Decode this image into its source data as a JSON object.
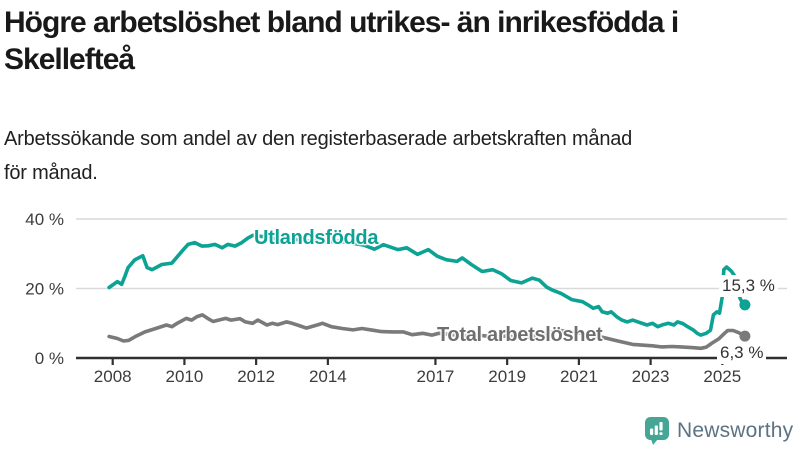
{
  "header": {
    "title_lines": [
      "Högre arbetslöshet bland utrikes- än inrikesfödda i",
      "Skellefteå"
    ],
    "subtitle_lines": [
      "Arbetssökande som andel av den registerbaserade arbetskraften månad",
      "för månad."
    ]
  },
  "chart_data": {
    "type": "line",
    "title": "Högre arbetslöshet bland utrikes- än inrikesfödda i Skellefteå",
    "subtitle": "Arbetssökande som andel av den registerbaserade arbetskraften månad för månad.",
    "xlabel": "",
    "ylabel": "",
    "xlim": [
      2007.3,
      2026.4
    ],
    "ylim": [
      0,
      43
    ],
    "grid": "horizontal",
    "legend_position": "inline-labels",
    "x_ticks": [
      2008,
      2010,
      2012,
      2014,
      2017,
      2019,
      2021,
      2023,
      2025
    ],
    "x_tick_labels": [
      "2008",
      "2010",
      "2012",
      "2014",
      "2017",
      "2019",
      "2021",
      "2023",
      "2025"
    ],
    "y_ticks": [
      0,
      20,
      40
    ],
    "y_tick_labels": [
      "0 %",
      "20 %",
      "40 %"
    ],
    "colors": {
      "grid": "#d9d9d9",
      "axis": "#303030",
      "tick_text": "#3c3c3c"
    },
    "series": [
      {
        "name": "Utlandsfödda",
        "color": "#0ca294",
        "end_label": "15,3 %",
        "end_value": 15.3,
        "points": [
          [
            2007.9,
            20.3
          ],
          [
            2008.13,
            22.0
          ],
          [
            2008.25,
            21.2
          ],
          [
            2008.34,
            23.5
          ],
          [
            2008.43,
            26.0
          ],
          [
            2008.62,
            28.3
          ],
          [
            2008.84,
            29.4
          ],
          [
            2008.96,
            26.0
          ],
          [
            2009.1,
            25.4
          ],
          [
            2009.37,
            26.9
          ],
          [
            2009.65,
            27.3
          ],
          [
            2009.93,
            30.7
          ],
          [
            2010.1,
            32.7
          ],
          [
            2010.29,
            33.2
          ],
          [
            2010.49,
            32.2
          ],
          [
            2010.66,
            32.3
          ],
          [
            2010.85,
            32.7
          ],
          [
            2011.05,
            31.7
          ],
          [
            2011.21,
            32.7
          ],
          [
            2011.41,
            32.2
          ],
          [
            2011.6,
            33.2
          ],
          [
            2011.77,
            34.5
          ],
          [
            2011.91,
            35.3
          ],
          [
            2012.2,
            34.9
          ],
          [
            2012.5,
            34.3
          ],
          [
            2012.8,
            33.9
          ],
          [
            2013.1,
            34.1
          ],
          [
            2013.4,
            33.6
          ],
          [
            2013.7,
            33.9
          ],
          [
            2014.0,
            33.4
          ],
          [
            2014.3,
            33.6
          ],
          [
            2014.7,
            33.0
          ],
          [
            2015.0,
            32.5
          ],
          [
            2015.3,
            31.3
          ],
          [
            2015.55,
            32.6
          ],
          [
            2015.95,
            31.2
          ],
          [
            2016.2,
            31.7
          ],
          [
            2016.5,
            29.8
          ],
          [
            2016.8,
            31.2
          ],
          [
            2017.05,
            29.3
          ],
          [
            2017.3,
            28.3
          ],
          [
            2017.6,
            27.8
          ],
          [
            2017.75,
            28.8
          ],
          [
            2018.0,
            26.9
          ],
          [
            2018.3,
            24.9
          ],
          [
            2018.6,
            25.4
          ],
          [
            2018.85,
            24.2
          ],
          [
            2019.1,
            22.3
          ],
          [
            2019.4,
            21.6
          ],
          [
            2019.7,
            23.0
          ],
          [
            2019.9,
            22.4
          ],
          [
            2020.1,
            20.4
          ],
          [
            2020.25,
            19.6
          ],
          [
            2020.5,
            18.6
          ],
          [
            2020.8,
            16.8
          ],
          [
            2021.1,
            16.2
          ],
          [
            2021.25,
            15.3
          ],
          [
            2021.4,
            14.3
          ],
          [
            2021.55,
            14.8
          ],
          [
            2021.65,
            13.3
          ],
          [
            2021.8,
            12.9
          ],
          [
            2021.9,
            13.3
          ],
          [
            2022.05,
            11.9
          ],
          [
            2022.2,
            10.9
          ],
          [
            2022.35,
            10.4
          ],
          [
            2022.5,
            10.9
          ],
          [
            2022.65,
            10.4
          ],
          [
            2022.9,
            9.5
          ],
          [
            2023.05,
            10.0
          ],
          [
            2023.2,
            9.0
          ],
          [
            2023.35,
            9.6
          ],
          [
            2023.5,
            10.0
          ],
          [
            2023.65,
            9.5
          ],
          [
            2023.75,
            10.4
          ],
          [
            2023.9,
            9.9
          ],
          [
            2024.05,
            8.9
          ],
          [
            2024.2,
            8.0
          ],
          [
            2024.3,
            7.1
          ],
          [
            2024.4,
            6.6
          ],
          [
            2024.55,
            7.1
          ],
          [
            2024.67,
            8.0
          ],
          [
            2024.75,
            12.4
          ],
          [
            2024.85,
            13.3
          ],
          [
            2024.92,
            12.9
          ],
          [
            2025.0,
            17.7
          ],
          [
            2025.04,
            25.4
          ],
          [
            2025.12,
            26.2
          ],
          [
            2025.25,
            25.0
          ],
          [
            2025.33,
            23.8
          ],
          [
            2025.42,
            19.5
          ],
          [
            2025.5,
            17.0
          ],
          [
            2025.58,
            15.6
          ],
          [
            2025.63,
            15.3
          ]
        ]
      },
      {
        "name": "Total arbetslöshet",
        "color": "#7a7a7a",
        "end_label": "6,3 %",
        "end_value": 6.3,
        "points": [
          [
            2007.9,
            6.2
          ],
          [
            2008.13,
            5.6
          ],
          [
            2008.3,
            4.9
          ],
          [
            2008.45,
            5.1
          ],
          [
            2008.62,
            6.1
          ],
          [
            2008.9,
            7.5
          ],
          [
            2009.2,
            8.5
          ],
          [
            2009.5,
            9.5
          ],
          [
            2009.65,
            9.0
          ],
          [
            2009.8,
            10.0
          ],
          [
            2010.05,
            11.4
          ],
          [
            2010.2,
            10.9
          ],
          [
            2010.35,
            11.9
          ],
          [
            2010.5,
            12.4
          ],
          [
            2010.65,
            11.4
          ],
          [
            2010.8,
            10.5
          ],
          [
            2010.95,
            10.9
          ],
          [
            2011.15,
            11.4
          ],
          [
            2011.3,
            10.9
          ],
          [
            2011.55,
            11.3
          ],
          [
            2011.7,
            10.4
          ],
          [
            2011.9,
            10.0
          ],
          [
            2012.05,
            10.9
          ],
          [
            2012.3,
            9.5
          ],
          [
            2012.45,
            10.0
          ],
          [
            2012.6,
            9.6
          ],
          [
            2012.85,
            10.4
          ],
          [
            2013.0,
            10.0
          ],
          [
            2013.15,
            9.5
          ],
          [
            2013.4,
            8.6
          ],
          [
            2013.7,
            9.5
          ],
          [
            2013.85,
            10.0
          ],
          [
            2014.1,
            9.0
          ],
          [
            2014.4,
            8.5
          ],
          [
            2014.7,
            8.1
          ],
          [
            2014.95,
            8.5
          ],
          [
            2015.25,
            8.0
          ],
          [
            2015.5,
            7.6
          ],
          [
            2015.8,
            7.5
          ],
          [
            2016.1,
            7.5
          ],
          [
            2016.35,
            6.7
          ],
          [
            2016.65,
            7.1
          ],
          [
            2016.9,
            6.6
          ],
          [
            2017.1,
            7.1
          ],
          [
            2017.4,
            6.8
          ],
          [
            2017.8,
            6.3
          ],
          [
            2018.2,
            6.6
          ],
          [
            2018.6,
            6.1
          ],
          [
            2019.0,
            6.3
          ],
          [
            2019.5,
            5.9
          ],
          [
            2020.0,
            6.6
          ],
          [
            2020.4,
            8.0
          ],
          [
            2020.8,
            7.5
          ],
          [
            2021.2,
            6.8
          ],
          [
            2021.6,
            6.1
          ],
          [
            2022.0,
            5.1
          ],
          [
            2022.3,
            4.4
          ],
          [
            2022.5,
            3.9
          ],
          [
            2022.75,
            3.7
          ],
          [
            2023.05,
            3.5
          ],
          [
            2023.3,
            3.2
          ],
          [
            2023.6,
            3.3
          ],
          [
            2023.85,
            3.2
          ],
          [
            2024.15,
            3.0
          ],
          [
            2024.4,
            2.8
          ],
          [
            2024.55,
            3.1
          ],
          [
            2024.7,
            4.2
          ],
          [
            2024.9,
            5.5
          ],
          [
            2025.05,
            7.0
          ],
          [
            2025.15,
            7.9
          ],
          [
            2025.3,
            7.9
          ],
          [
            2025.45,
            7.3
          ],
          [
            2025.63,
            6.3
          ]
        ]
      }
    ]
  },
  "branding": {
    "logo_text": "Newsworthy",
    "logo_color": "#45a695",
    "logo_text_color": "#5c7383"
  }
}
